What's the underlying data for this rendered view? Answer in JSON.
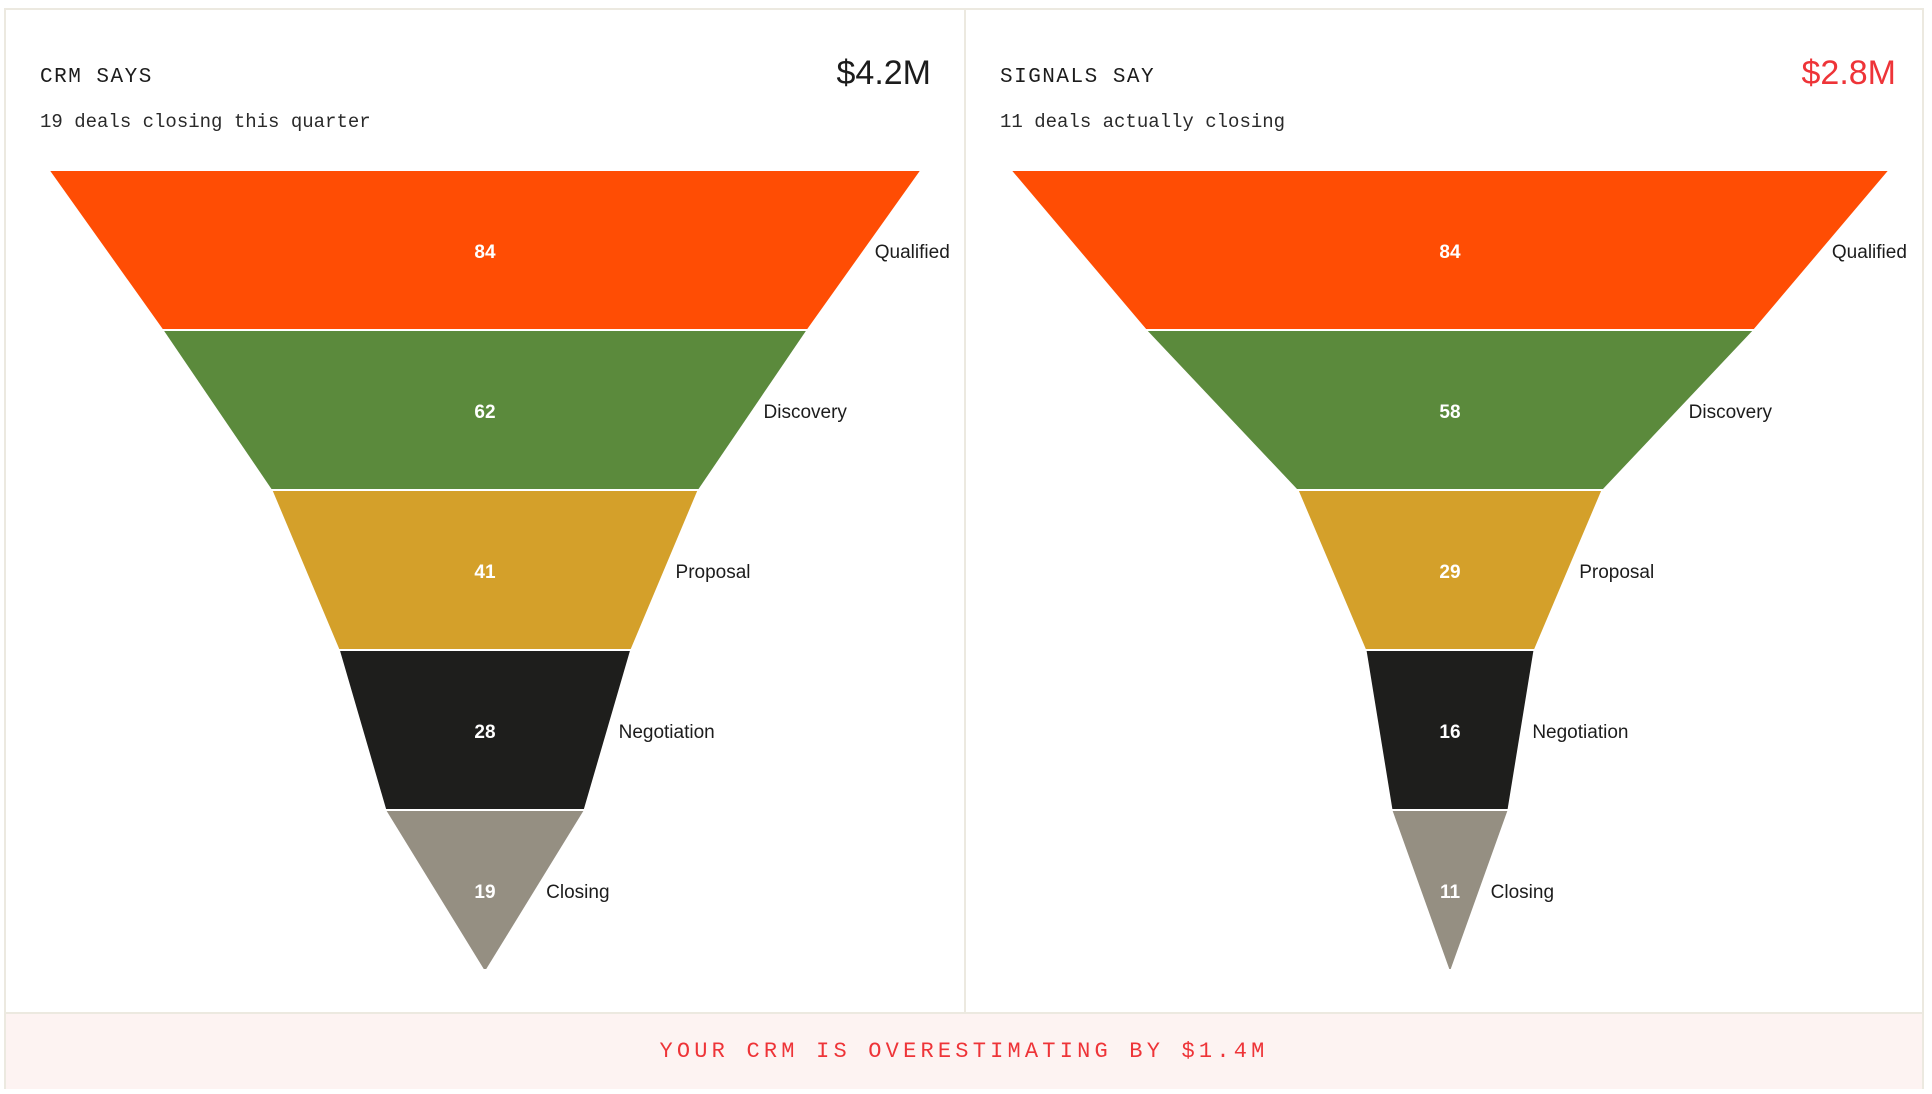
{
  "left_panel": {
    "title": "CRM SAYS",
    "subtitle": "19 deals closing this quarter",
    "amount": "$4.2M",
    "amount_color": "#1c1c1c"
  },
  "right_panel": {
    "title": "SIGNALS SAY",
    "subtitle": "11 deals actually closing",
    "amount": "$2.8M",
    "amount_color": "#ee3438"
  },
  "banner": {
    "text": "YOUR CRM IS OVERESTIMATING BY $1.4M",
    "color": "#ee3438",
    "background": "#fdf3f2"
  },
  "colors": {
    "Qualified": "#ff4d04",
    "Discovery": "#5b8a3c",
    "Proposal": "#d4a02a",
    "Negotiation": "#1e1e1c",
    "Closing": "#958f82"
  },
  "chart_data": [
    {
      "type": "funnel",
      "title": "CRM SAYS",
      "subtitle": "19 deals closing this quarter",
      "total_value": "$4.2M",
      "categories": [
        "Qualified",
        "Discovery",
        "Proposal",
        "Negotiation",
        "Closing"
      ],
      "visible_labels": [
        "Qualifi",
        "Discovery",
        "Proposal",
        "Negotiation",
        "Closing"
      ],
      "values": [
        84,
        62,
        41,
        28,
        19
      ]
    },
    {
      "type": "funnel",
      "title": "SIGNALS SAY",
      "subtitle": "11 deals actually closing",
      "total_value": "$2.8M",
      "categories": [
        "Qualified",
        "Discovery",
        "Proposal",
        "Negotiation",
        "Closing"
      ],
      "visible_labels": [
        "Qualifie",
        "Discovery",
        "Proposal",
        "Negotiation",
        "Closing"
      ],
      "values": [
        84,
        58,
        29,
        16,
        11
      ]
    }
  ]
}
